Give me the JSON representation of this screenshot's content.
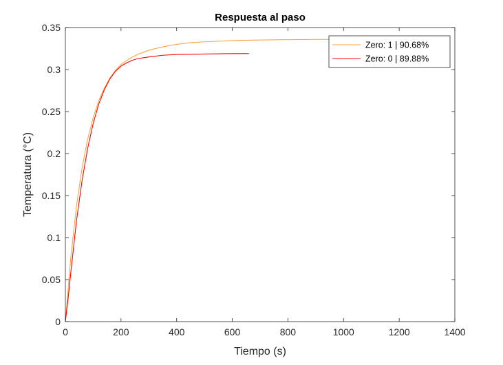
{
  "chart_data": {
    "type": "line",
    "title": "Respuesta al paso",
    "xlabel": "Tiempo (s)",
    "ylabel": "Temperatura (°C)",
    "xlim": [
      0,
      1400
    ],
    "ylim": [
      0,
      0.35
    ],
    "xticks": [
      0,
      200,
      400,
      600,
      800,
      1000,
      1200,
      1400
    ],
    "yticks": [
      0,
      0.05,
      0.1,
      0.15,
      0.2,
      0.25,
      0.3,
      0.35
    ],
    "xtick_labels": [
      "0",
      "200",
      "400",
      "600",
      "800",
      "1000",
      "1200",
      "1400"
    ],
    "ytick_labels": [
      "0",
      "0.05",
      "0.1",
      "0.15",
      "0.2",
      "0.25",
      "0.3",
      "0.35"
    ],
    "grid": false,
    "box": true,
    "legend_position": "top-right",
    "series": [
      {
        "name": "Zero: 1 | 90.68%",
        "color": "#f5a742",
        "x": [
          0,
          20,
          40,
          60,
          80,
          100,
          120,
          140,
          160,
          180,
          200,
          230,
          260,
          300,
          350,
          400,
          450,
          500,
          600,
          700,
          800,
          900,
          1000
        ],
        "y": [
          0,
          0.078,
          0.138,
          0.183,
          0.217,
          0.243,
          0.263,
          0.278,
          0.29,
          0.299,
          0.306,
          0.313,
          0.318,
          0.323,
          0.327,
          0.33,
          0.332,
          0.333,
          0.3345,
          0.3352,
          0.3356,
          0.3358,
          0.336
        ]
      },
      {
        "name": "Zero: 0 | 89.88%",
        "color": "#ff0000",
        "x": [
          0,
          10,
          20,
          40,
          60,
          80,
          100,
          120,
          140,
          160,
          180,
          200,
          220,
          240,
          260,
          300,
          350,
          400,
          500,
          600,
          660
        ],
        "y": [
          0,
          0.028,
          0.06,
          0.12,
          0.168,
          0.206,
          0.236,
          0.259,
          0.276,
          0.289,
          0.298,
          0.304,
          0.308,
          0.311,
          0.313,
          0.315,
          0.317,
          0.318,
          0.3185,
          0.319,
          0.319
        ]
      }
    ]
  }
}
